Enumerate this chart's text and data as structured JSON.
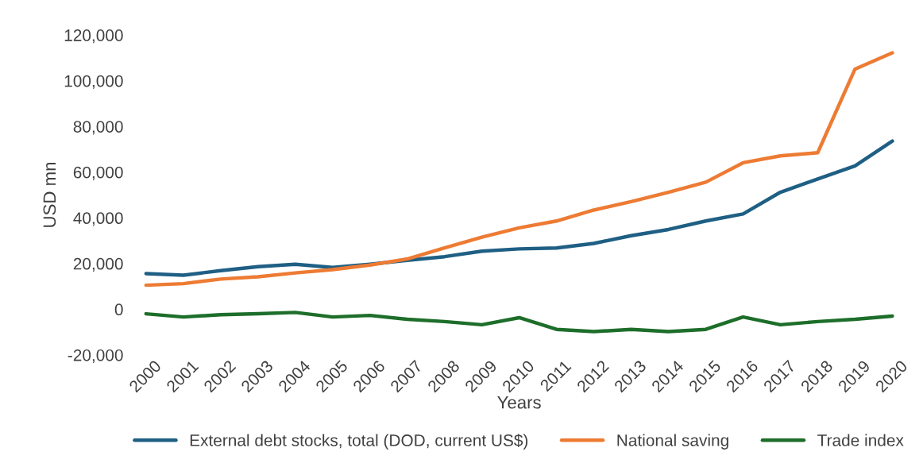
{
  "chart_data": {
    "type": "line",
    "xlabel": "Years",
    "ylabel": "USD mn",
    "categories": [
      "2000",
      "2001",
      "2002",
      "2003",
      "2004",
      "2005",
      "2006",
      "2007",
      "2008",
      "2009",
      "2010",
      "2011",
      "2012",
      "2013",
      "2014",
      "2015",
      "2016",
      "2017",
      "2018",
      "2019",
      "2020"
    ],
    "series": [
      {
        "name": "External debt stocks, total (DOD, current US$)",
        "color": "#1f5f84",
        "values": [
          15600,
          14900,
          16900,
          18600,
          19700,
          18300,
          19700,
          21400,
          23000,
          25400,
          26400,
          26800,
          28800,
          32200,
          34900,
          38600,
          41700,
          51200,
          57000,
          62700,
          73600
        ]
      },
      {
        "name": "National saving",
        "color": "#ed7b33",
        "values": [
          10500,
          11200,
          13200,
          14200,
          15900,
          17300,
          19300,
          22000,
          26800,
          31500,
          35600,
          38600,
          43400,
          47100,
          51200,
          55600,
          64100,
          67100,
          68500,
          105100,
          112200
        ]
      },
      {
        "name": "Trade index",
        "color": "#1d6e2a",
        "values": [
          -2000,
          -3400,
          -2400,
          -2000,
          -1400,
          -3400,
          -2700,
          -4400,
          -5400,
          -6800,
          -3700,
          -8800,
          -9800,
          -8800,
          -9800,
          -8800,
          -3400,
          -6800,
          -5400,
          -4400,
          -3000
        ]
      }
    ],
    "ylim": [
      -20000,
      120000
    ],
    "yticks": [
      {
        "value": -20000,
        "label": "-20,000"
      },
      {
        "value": 0,
        "label": "0"
      },
      {
        "value": 20000,
        "label": "20,000"
      },
      {
        "value": 40000,
        "label": "40,000"
      },
      {
        "value": 60000,
        "label": "60,000"
      },
      {
        "value": 80000,
        "label": "80,000"
      },
      {
        "value": 100000,
        "label": "100,000"
      },
      {
        "value": 120000,
        "label": "120,000"
      }
    ],
    "grid": false,
    "legend": "bottom",
    "marker": "none",
    "line_style": "solid"
  }
}
